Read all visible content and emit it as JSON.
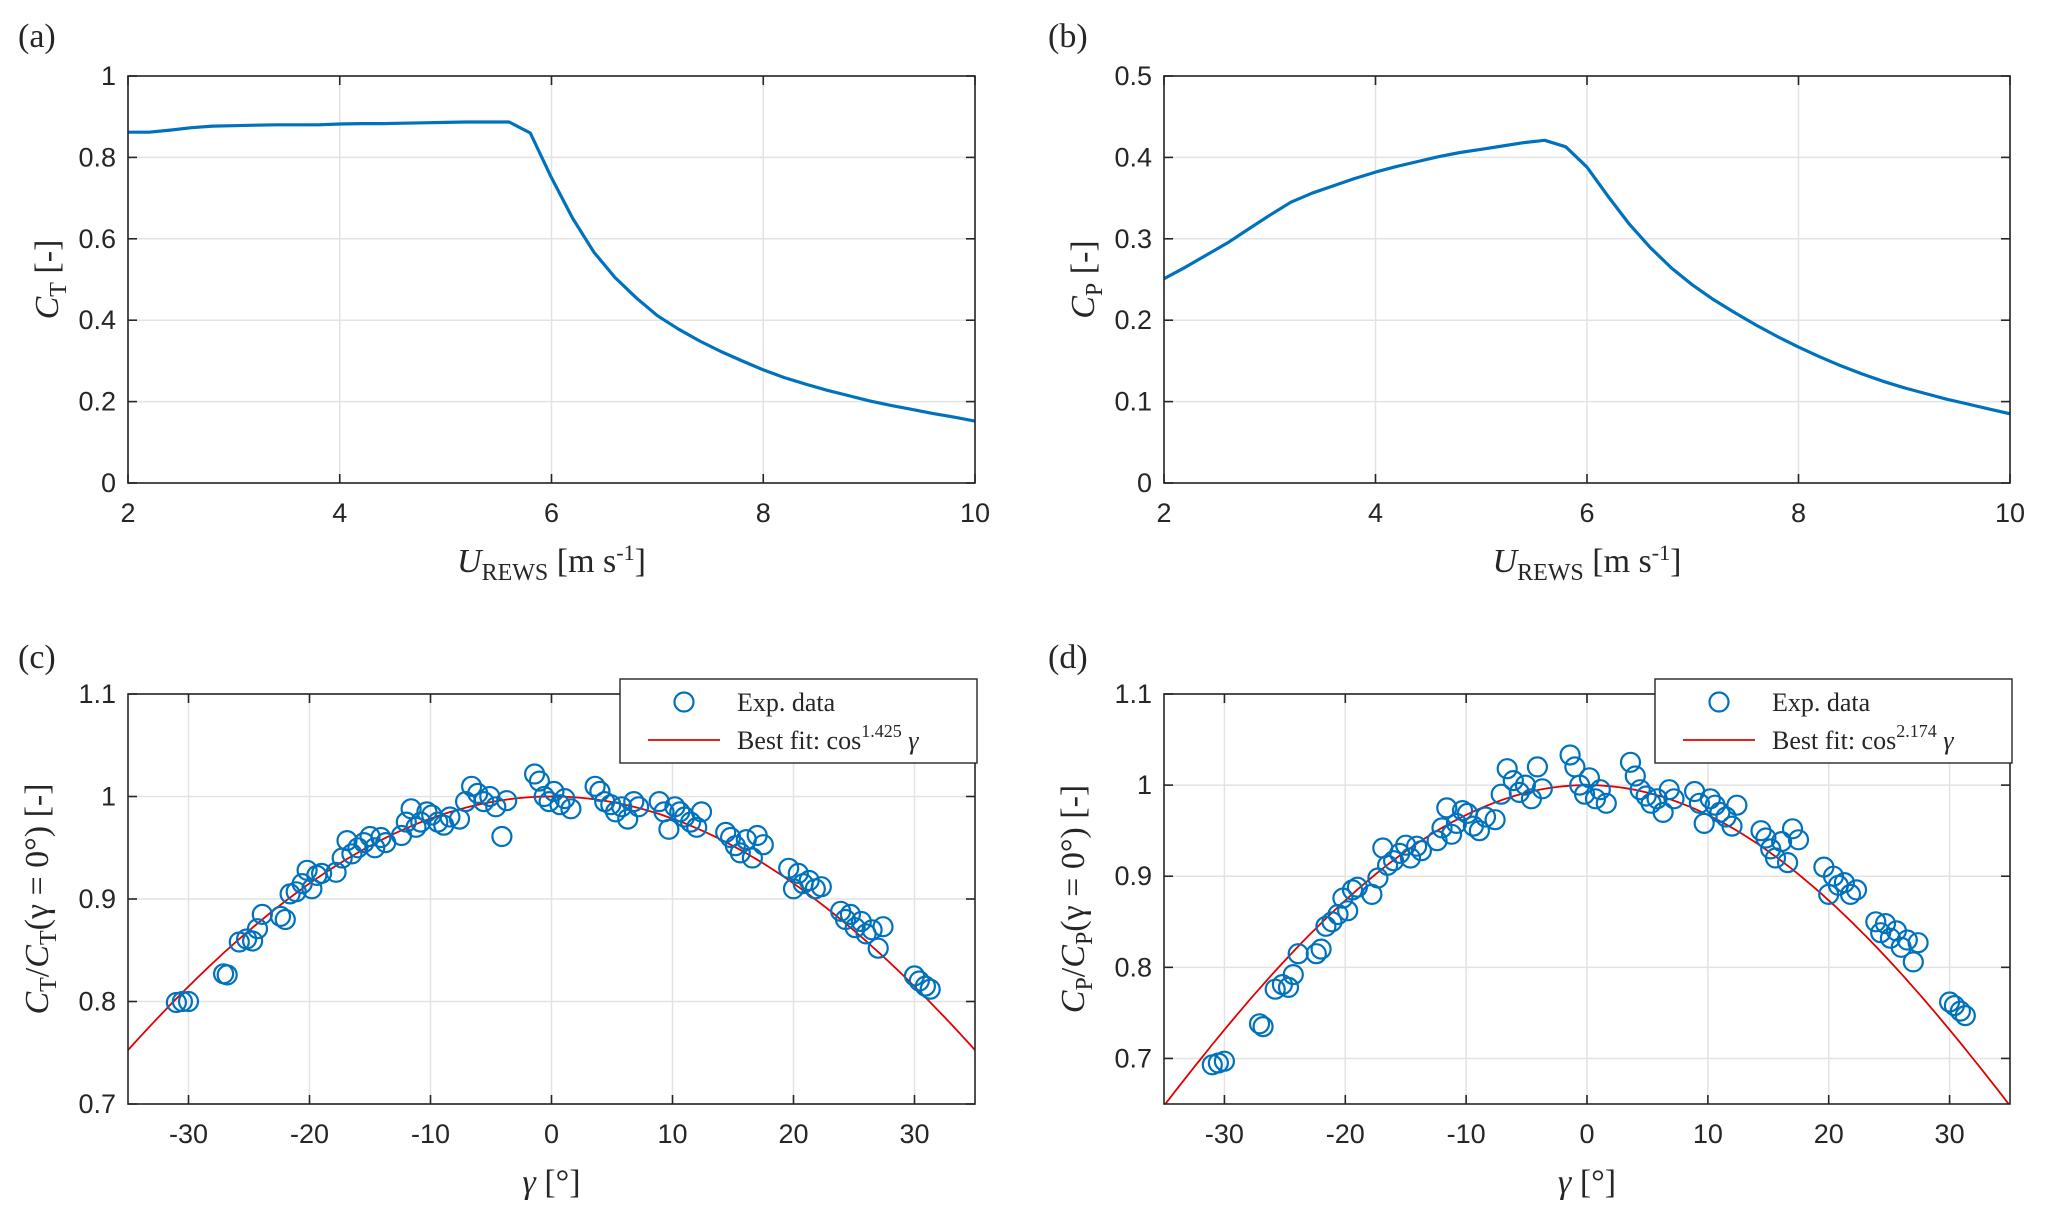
{
  "chart_data": [
    {
      "panel": "(a)",
      "type": "line",
      "xlabel": {
        "main": "U",
        "sub": "REWS",
        "unit_open": " [m  s",
        "unit_sup": "-1",
        "unit_close": "]"
      },
      "ylabel": {
        "main": "C",
        "sub": "T",
        "unit": " [-]"
      },
      "xlim": [
        2,
        10
      ],
      "ylim": [
        0,
        1
      ],
      "xticks": [
        2,
        4,
        6,
        8,
        10
      ],
      "yticks": [
        0,
        0.2,
        0.4,
        0.6,
        0.8,
        1
      ],
      "xtick_labels": [
        "2",
        "4",
        "6",
        "8",
        "10"
      ],
      "ytick_labels": [
        "0",
        "0.2",
        "0.4",
        "0.6",
        "0.8",
        "1"
      ],
      "grid": true,
      "series": [
        {
          "name": "CT",
          "color": "#0072BD",
          "x": [
            2.0,
            2.2,
            2.4,
            2.6,
            2.8,
            3.0,
            3.2,
            3.4,
            3.6,
            3.8,
            4.0,
            4.2,
            4.4,
            4.6,
            4.8,
            5.0,
            5.2,
            5.4,
            5.6,
            5.8,
            6.0,
            6.2,
            6.4,
            6.6,
            6.8,
            7.0,
            7.2,
            7.4,
            7.6,
            7.8,
            8.0,
            8.2,
            8.4,
            8.6,
            8.8,
            9.0,
            9.2,
            9.4,
            9.6,
            9.8,
            10.0
          ],
          "y": [
            0.862,
            0.862,
            0.867,
            0.873,
            0.877,
            0.878,
            0.879,
            0.88,
            0.88,
            0.88,
            0.882,
            0.883,
            0.883,
            0.884,
            0.885,
            0.886,
            0.887,
            0.887,
            0.887,
            0.86,
            0.75,
            0.65,
            0.567,
            0.505,
            0.455,
            0.411,
            0.378,
            0.349,
            0.323,
            0.3,
            0.278,
            0.259,
            0.243,
            0.228,
            0.215,
            0.202,
            0.191,
            0.181,
            0.171,
            0.162,
            0.152
          ]
        }
      ]
    },
    {
      "panel": "(b)",
      "type": "line",
      "xlabel": {
        "main": "U",
        "sub": "REWS",
        "unit_open": " [m  s",
        "unit_sup": "-1",
        "unit_close": "]"
      },
      "ylabel": {
        "main": "C",
        "sub": "P",
        "unit": " [-]"
      },
      "xlim": [
        2,
        10
      ],
      "ylim": [
        0,
        0.5
      ],
      "xticks": [
        2,
        4,
        6,
        8,
        10
      ],
      "yticks": [
        0,
        0.1,
        0.2,
        0.3,
        0.4,
        0.5
      ],
      "xtick_labels": [
        "2",
        "4",
        "6",
        "8",
        "10"
      ],
      "ytick_labels": [
        "0",
        "0.1",
        "0.2",
        "0.3",
        "0.4",
        "0.5"
      ],
      "grid": true,
      "series": [
        {
          "name": "CP",
          "color": "#0072BD",
          "x": [
            2.0,
            2.2,
            2.4,
            2.6,
            2.8,
            3.0,
            3.2,
            3.4,
            3.6,
            3.8,
            4.0,
            4.2,
            4.4,
            4.6,
            4.8,
            5.0,
            5.2,
            5.4,
            5.6,
            5.8,
            6.0,
            6.2,
            6.4,
            6.6,
            6.8,
            7.0,
            7.2,
            7.4,
            7.6,
            7.8,
            8.0,
            8.2,
            8.4,
            8.6,
            8.8,
            9.0,
            9.2,
            9.4,
            9.6,
            9.8,
            10.0
          ],
          "y": [
            0.251,
            0.265,
            0.28,
            0.295,
            0.312,
            0.329,
            0.345,
            0.356,
            0.365,
            0.374,
            0.382,
            0.389,
            0.395,
            0.401,
            0.406,
            0.41,
            0.414,
            0.418,
            0.421,
            0.413,
            0.388,
            0.352,
            0.318,
            0.289,
            0.264,
            0.243,
            0.225,
            0.209,
            0.194,
            0.18,
            0.167,
            0.155,
            0.144,
            0.134,
            0.125,
            0.117,
            0.11,
            0.103,
            0.097,
            0.091,
            0.085
          ]
        }
      ]
    },
    {
      "panel": "(c)",
      "type": "scatter",
      "xlabel": {
        "main": "γ",
        "unit": " [°]"
      },
      "ylabel": {
        "num_main": "C",
        "num_sub": "T",
        "den_main": "C",
        "den_sub": "T",
        "cond": "(γ = 0°)",
        "unit": " [-]"
      },
      "xlim": [
        -35,
        35
      ],
      "ylim": [
        0.7,
        1.1
      ],
      "xticks": [
        -30,
        -20,
        -10,
        0,
        10,
        20,
        30
      ],
      "yticks": [
        0.7,
        0.8,
        0.9,
        1,
        1.1
      ],
      "xtick_labels": [
        "-30",
        "-20",
        "-10",
        "0",
        "10",
        "20",
        "30"
      ],
      "ytick_labels": [
        "0.7",
        "0.8",
        "0.9",
        "1",
        "1.1"
      ],
      "grid": true,
      "legend": {
        "position": "top-right",
        "entries": [
          {
            "label": "Exp.  data",
            "kind": "marker"
          },
          {
            "label_prefix": "Best  fit: cos",
            "exponent": "1.425",
            "label_suffix": " γ",
            "kind": "line"
          }
        ]
      },
      "fit": {
        "name": "Best fit",
        "color": "#E00000",
        "exponent": 1.425
      },
      "series": [
        {
          "name": "Exp. data",
          "color": "#0072BD",
          "x": [
            -31.0,
            -30.5,
            -30.0,
            -27.1,
            -26.8,
            -25.8,
            -25.2,
            -24.7,
            -24.3,
            -23.9,
            -22.4,
            -22.0,
            -21.6,
            -21.1,
            -20.6,
            -20.2,
            -19.8,
            -19.4,
            -19.0,
            -17.8,
            -17.3,
            -16.9,
            -16.5,
            -16.0,
            -15.5,
            -15.0,
            -14.6,
            -14.1,
            -13.7,
            -12.4,
            -12.0,
            -11.6,
            -11.2,
            -10.8,
            -10.3,
            -9.9,
            -9.4,
            -8.9,
            -8.4,
            -7.6,
            -7.1,
            -6.6,
            -6.1,
            -5.6,
            -5.1,
            -4.6,
            -4.1,
            -3.7,
            -1.4,
            -1.0,
            -0.6,
            -0.2,
            0.2,
            0.7,
            1.1,
            1.6,
            3.6,
            4.0,
            4.4,
            4.9,
            5.3,
            5.8,
            6.3,
            6.8,
            7.2,
            8.9,
            9.3,
            9.7,
            10.2,
            10.6,
            11.0,
            11.5,
            12.0,
            12.4,
            14.4,
            14.8,
            15.2,
            15.6,
            16.1,
            16.6,
            17.0,
            17.5,
            19.6,
            20.0,
            20.4,
            20.8,
            21.3,
            21.8,
            22.3,
            23.9,
            24.3,
            24.7,
            25.1,
            25.6,
            26.0,
            26.5,
            27.0,
            27.4,
            30.0,
            30.4,
            30.9,
            31.3
          ],
          "y": [
            0.799,
            0.8,
            0.8,
            0.827,
            0.826,
            0.858,
            0.861,
            0.859,
            0.871,
            0.885,
            0.883,
            0.88,
            0.905,
            0.907,
            0.915,
            0.928,
            0.91,
            0.923,
            0.925,
            0.926,
            0.94,
            0.957,
            0.944,
            0.95,
            0.955,
            0.961,
            0.95,
            0.96,
            0.955,
            0.962,
            0.975,
            0.988,
            0.97,
            0.975,
            0.985,
            0.982,
            0.975,
            0.972,
            0.98,
            0.978,
            0.995,
            1.01,
            1.003,
            0.995,
            1.0,
            0.99,
            0.961,
            0.996,
            1.022,
            1.015,
            1.0,
            0.995,
            1.005,
            0.992,
            0.998,
            0.988,
            1.01,
            1.005,
            0.995,
            0.992,
            0.985,
            0.99,
            0.978,
            0.995,
            0.99,
            0.995,
            0.985,
            0.968,
            0.99,
            0.985,
            0.98,
            0.975,
            0.97,
            0.985,
            0.965,
            0.96,
            0.952,
            0.945,
            0.958,
            0.94,
            0.962,
            0.953,
            0.93,
            0.91,
            0.925,
            0.915,
            0.918,
            0.91,
            0.912,
            0.888,
            0.88,
            0.885,
            0.872,
            0.878,
            0.866,
            0.87,
            0.852,
            0.873,
            0.825,
            0.82,
            0.815,
            0.812
          ]
        }
      ]
    },
    {
      "panel": "(d)",
      "type": "scatter",
      "xlabel": {
        "main": "γ",
        "unit": " [°]"
      },
      "ylabel": {
        "num_main": "C",
        "num_sub": "P",
        "den_main": "C",
        "den_sub": "P",
        "cond": "(γ = 0°)",
        "unit": " [-]"
      },
      "xlim": [
        -35,
        35
      ],
      "ylim": [
        0.65,
        1.1
      ],
      "xticks": [
        -30,
        -20,
        -10,
        0,
        10,
        20,
        30
      ],
      "yticks": [
        0.7,
        0.8,
        0.9,
        1,
        1.1
      ],
      "xtick_labels": [
        "-30",
        "-20",
        "-10",
        "0",
        "10",
        "20",
        "30"
      ],
      "ytick_labels": [
        "0.7",
        "0.8",
        "0.9",
        "1",
        "1.1"
      ],
      "grid": true,
      "legend": {
        "position": "top-right",
        "entries": [
          {
            "label": "Exp.  data",
            "kind": "marker"
          },
          {
            "label_prefix": "Best  fit: cos",
            "exponent": "2.174",
            "label_suffix": " γ",
            "kind": "line"
          }
        ]
      },
      "fit": {
        "name": "Best fit",
        "color": "#E00000",
        "exponent": 2.174
      },
      "series": [
        {
          "name": "Exp. data",
          "color": "#0072BD",
          "x": [
            -31.0,
            -30.5,
            -30.0,
            -27.1,
            -26.8,
            -25.8,
            -25.2,
            -24.7,
            -24.3,
            -23.9,
            -22.4,
            -22.0,
            -21.6,
            -21.1,
            -20.6,
            -20.2,
            -19.8,
            -19.4,
            -19.0,
            -17.8,
            -17.3,
            -16.9,
            -16.5,
            -16.0,
            -15.5,
            -15.0,
            -14.6,
            -14.1,
            -13.7,
            -12.4,
            -12.0,
            -11.6,
            -11.2,
            -10.8,
            -10.3,
            -9.9,
            -9.4,
            -8.9,
            -8.4,
            -7.6,
            -7.1,
            -6.6,
            -6.1,
            -5.6,
            -5.1,
            -4.6,
            -4.1,
            -3.7,
            -1.4,
            -1.0,
            -0.6,
            -0.2,
            0.2,
            0.7,
            1.1,
            1.6,
            3.6,
            4.0,
            4.4,
            4.9,
            5.3,
            5.8,
            6.3,
            6.8,
            7.2,
            8.9,
            9.3,
            9.7,
            10.2,
            10.6,
            11.0,
            11.5,
            12.0,
            12.4,
            14.4,
            14.8,
            15.2,
            15.6,
            16.1,
            16.6,
            17.0,
            17.5,
            19.6,
            20.0,
            20.4,
            20.8,
            21.3,
            21.8,
            22.3,
            23.9,
            24.3,
            24.7,
            25.1,
            25.6,
            26.0,
            26.5,
            27.0,
            27.4,
            30.0,
            30.4,
            30.9,
            31.3
          ],
          "y": [
            0.693,
            0.695,
            0.697,
            0.738,
            0.735,
            0.776,
            0.781,
            0.778,
            0.792,
            0.815,
            0.815,
            0.82,
            0.845,
            0.85,
            0.858,
            0.876,
            0.862,
            0.885,
            0.888,
            0.88,
            0.898,
            0.931,
            0.912,
            0.917,
            0.925,
            0.934,
            0.92,
            0.933,
            0.928,
            0.939,
            0.953,
            0.975,
            0.946,
            0.958,
            0.972,
            0.969,
            0.955,
            0.95,
            0.965,
            0.962,
            0.99,
            1.018,
            1.005,
            0.992,
            1.0,
            0.985,
            1.02,
            0.996,
            1.033,
            1.02,
            1.0,
            0.99,
            1.008,
            0.985,
            0.995,
            0.98,
            1.025,
            1.01,
            0.995,
            0.988,
            0.98,
            0.985,
            0.97,
            0.995,
            0.985,
            0.993,
            0.98,
            0.958,
            0.985,
            0.978,
            0.97,
            0.965,
            0.955,
            0.978,
            0.95,
            0.942,
            0.93,
            0.92,
            0.938,
            0.915,
            0.952,
            0.94,
            0.91,
            0.88,
            0.9,
            0.89,
            0.893,
            0.88,
            0.885,
            0.85,
            0.838,
            0.848,
            0.832,
            0.84,
            0.822,
            0.83,
            0.806,
            0.827,
            0.762,
            0.758,
            0.752,
            0.747
          ]
        }
      ]
    }
  ]
}
